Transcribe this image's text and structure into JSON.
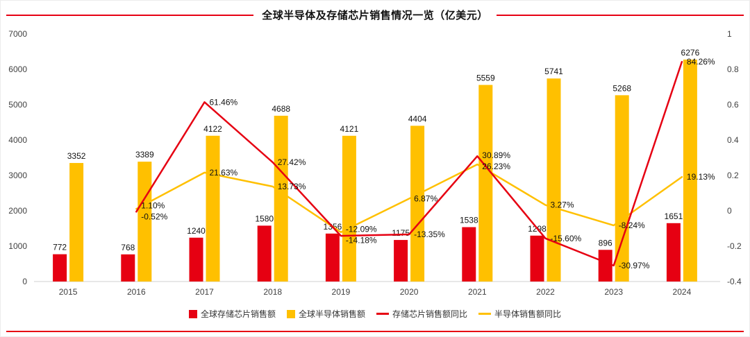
{
  "title": "全球半导体及存储芯片销售情况一览（亿美元）",
  "colors": {
    "red": "#e60012",
    "yellow": "#ffc000",
    "axis_text": "#404040",
    "label_text": "#111111"
  },
  "legend": [
    {
      "label": "全球存储芯片销售额",
      "type": "bar",
      "color": "#e60012"
    },
    {
      "label": "全球半导体销售额",
      "type": "bar",
      "color": "#ffc000"
    },
    {
      "label": "存储芯片销售额同比",
      "type": "line",
      "color": "#e60012"
    },
    {
      "label": "半导体销售额同比",
      "type": "line",
      "color": "#ffc000"
    }
  ],
  "chart_data": {
    "type": "bar",
    "subtype": "combo bar+line, dual axis",
    "title": "全球半导体及存储芯片销售情况一览（亿美元）",
    "categories": [
      "2015",
      "2016",
      "2017",
      "2018",
      "2019",
      "2020",
      "2021",
      "2022",
      "2023",
      "2024"
    ],
    "bar_series": [
      {
        "name": "全球存储芯片销售额",
        "color": "#e60012",
        "values": [
          772,
          768,
          1240,
          1580,
          1356,
          1175,
          1538,
          1298,
          896,
          1651
        ]
      },
      {
        "name": "全球半导体销售额",
        "color": "#ffc000",
        "values": [
          3352,
          3389,
          4122,
          4688,
          4121,
          4404,
          5559,
          5741,
          5268,
          6276
        ]
      }
    ],
    "line_series": [
      {
        "name": "存储芯片销售额同比",
        "color": "#e60012",
        "unit": "%",
        "values": [
          null,
          -0.52,
          61.46,
          27.42,
          -14.18,
          -13.35,
          30.89,
          -15.6,
          -30.97,
          84.26
        ]
      },
      {
        "name": "半导体销售额同比",
        "color": "#ffc000",
        "unit": "%",
        "values": [
          null,
          1.1,
          21.63,
          13.73,
          -12.09,
          6.87,
          26.23,
          3.27,
          -8.24,
          19.13
        ]
      }
    ],
    "left_axis": {
      "min": 0,
      "max": 7000,
      "ticks": [
        0,
        1000,
        2000,
        3000,
        4000,
        5000,
        6000,
        7000
      ]
    },
    "right_axis": {
      "min": -0.4,
      "max": 1,
      "ticks": [
        -0.4,
        -0.2,
        0,
        0.2,
        0.4,
        0.6,
        0.8,
        1
      ]
    },
    "grid": false,
    "legend_position": "bottom"
  }
}
